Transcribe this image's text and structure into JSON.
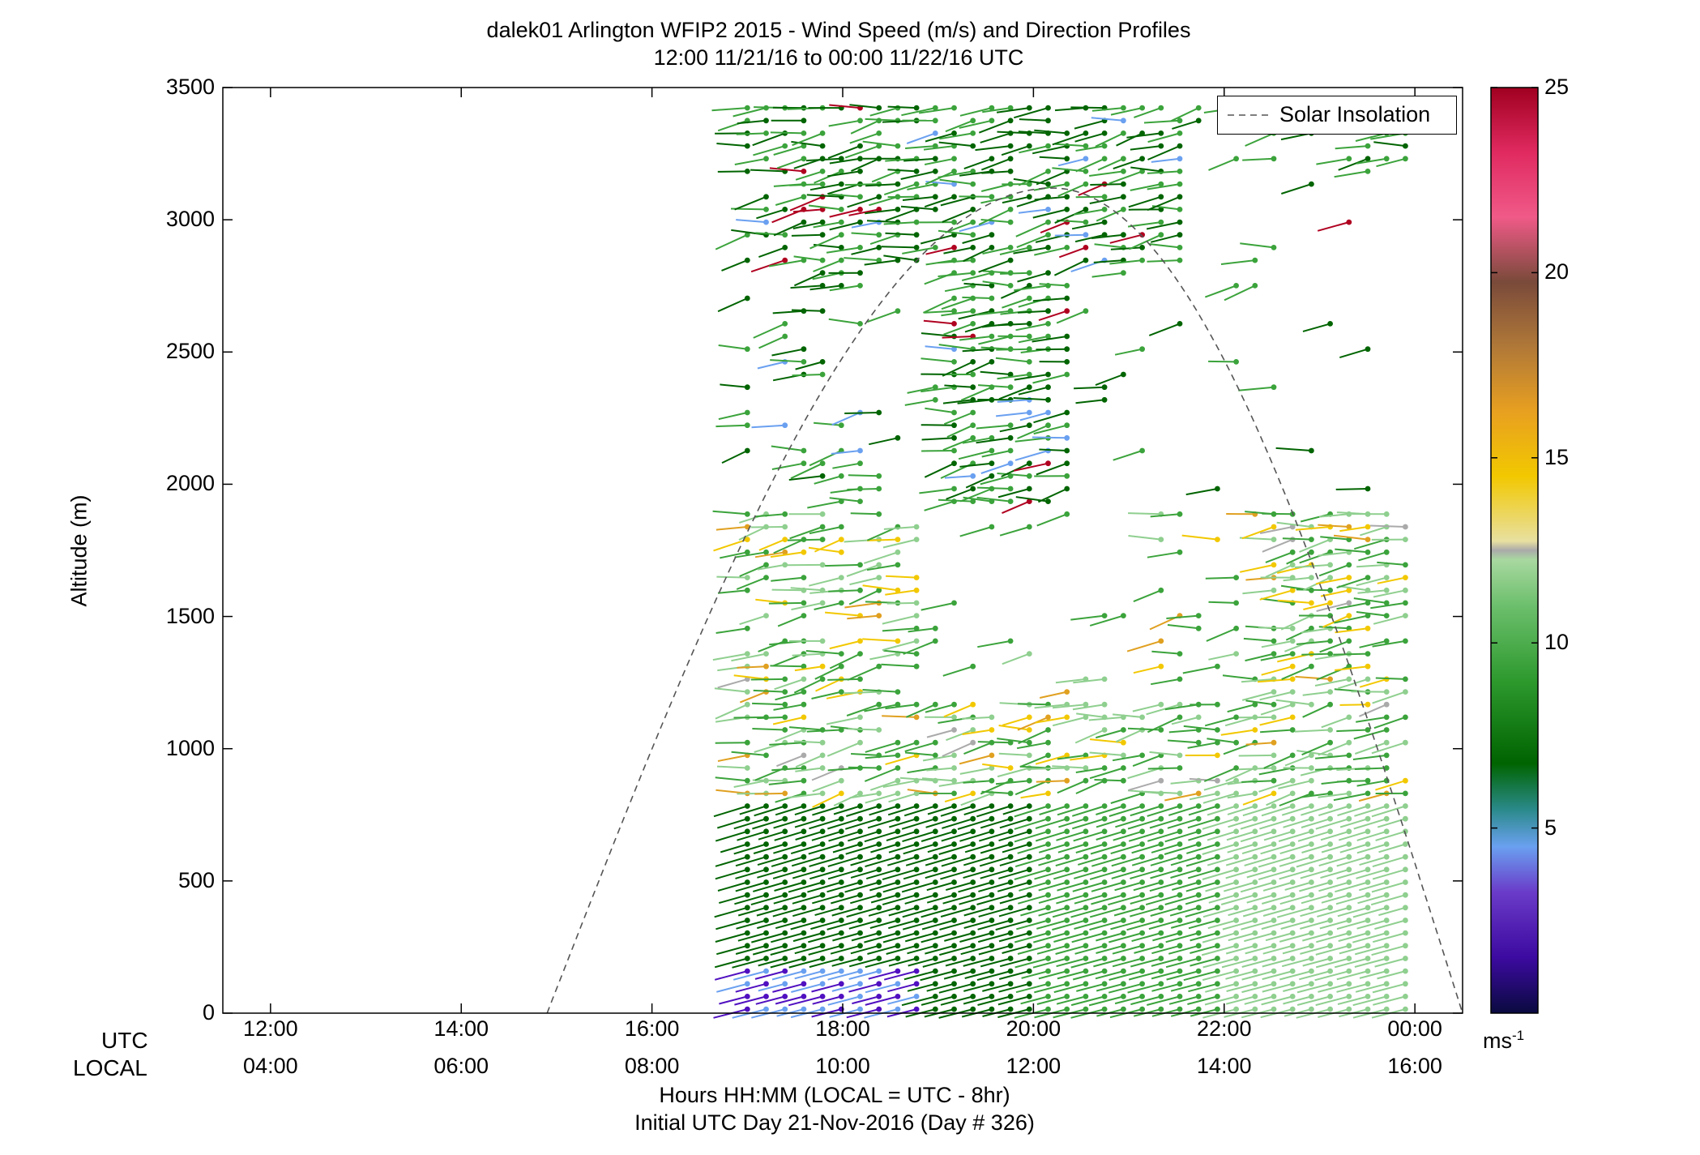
{
  "chart_data": {
    "type": "wind-barb",
    "title": "dalek01 Arlington WFIP2 2015 - Wind Speed (m/s) and Direction Profiles",
    "subtitle": "12:00 11/21/16 to 00:00 11/22/16  UTC",
    "ylabel": "Altitude (m)",
    "xlabel": "Hours HH:MM  (LOCAL = UTC - 8hr)",
    "xlabel2": "Initial UTC Day 21-Nov-2016 (Day # 326)",
    "row_label_utc": "UTC",
    "row_label_local": "LOCAL",
    "ylim": [
      0,
      3500
    ],
    "xlim_hours": [
      11.5,
      24.5
    ],
    "yticks": [
      "0",
      "500",
      "1000",
      "1500",
      "2000",
      "2500",
      "3000",
      "3500"
    ],
    "xticks_utc": [
      "12:00",
      "14:00",
      "16:00",
      "18:00",
      "20:00",
      "22:00",
      "00:00"
    ],
    "xticks_local": [
      "04:00",
      "06:00",
      "08:00",
      "10:00",
      "12:00",
      "14:00",
      "16:00"
    ],
    "legend": "Solar Insolation",
    "legend_position": "top-right",
    "colorbar": {
      "ticks": [
        "5",
        "10",
        "15",
        "20",
        "25"
      ],
      "range": [
        0,
        25
      ],
      "units_base": "ms",
      "units_exp": "-1"
    },
    "solar_insolation_curve": {
      "rise_hour": 14.9,
      "peak_hour": 20.2,
      "peak_altitude": 3120,
      "set_hour": 24.5
    },
    "profile_time_range_hours": [
      17.0,
      23.9
    ],
    "colors": {
      "dark_green": "#006400",
      "mid_green": "#3ba33b",
      "light_green": "#8fcf8f",
      "yellow": "#f2c800",
      "orange": "#e0a020",
      "blue": "#6aa0f0",
      "purple": "#5010c0",
      "red": "#b00020",
      "brown": "#a06030",
      "grey": "#aaaaaa"
    }
  }
}
